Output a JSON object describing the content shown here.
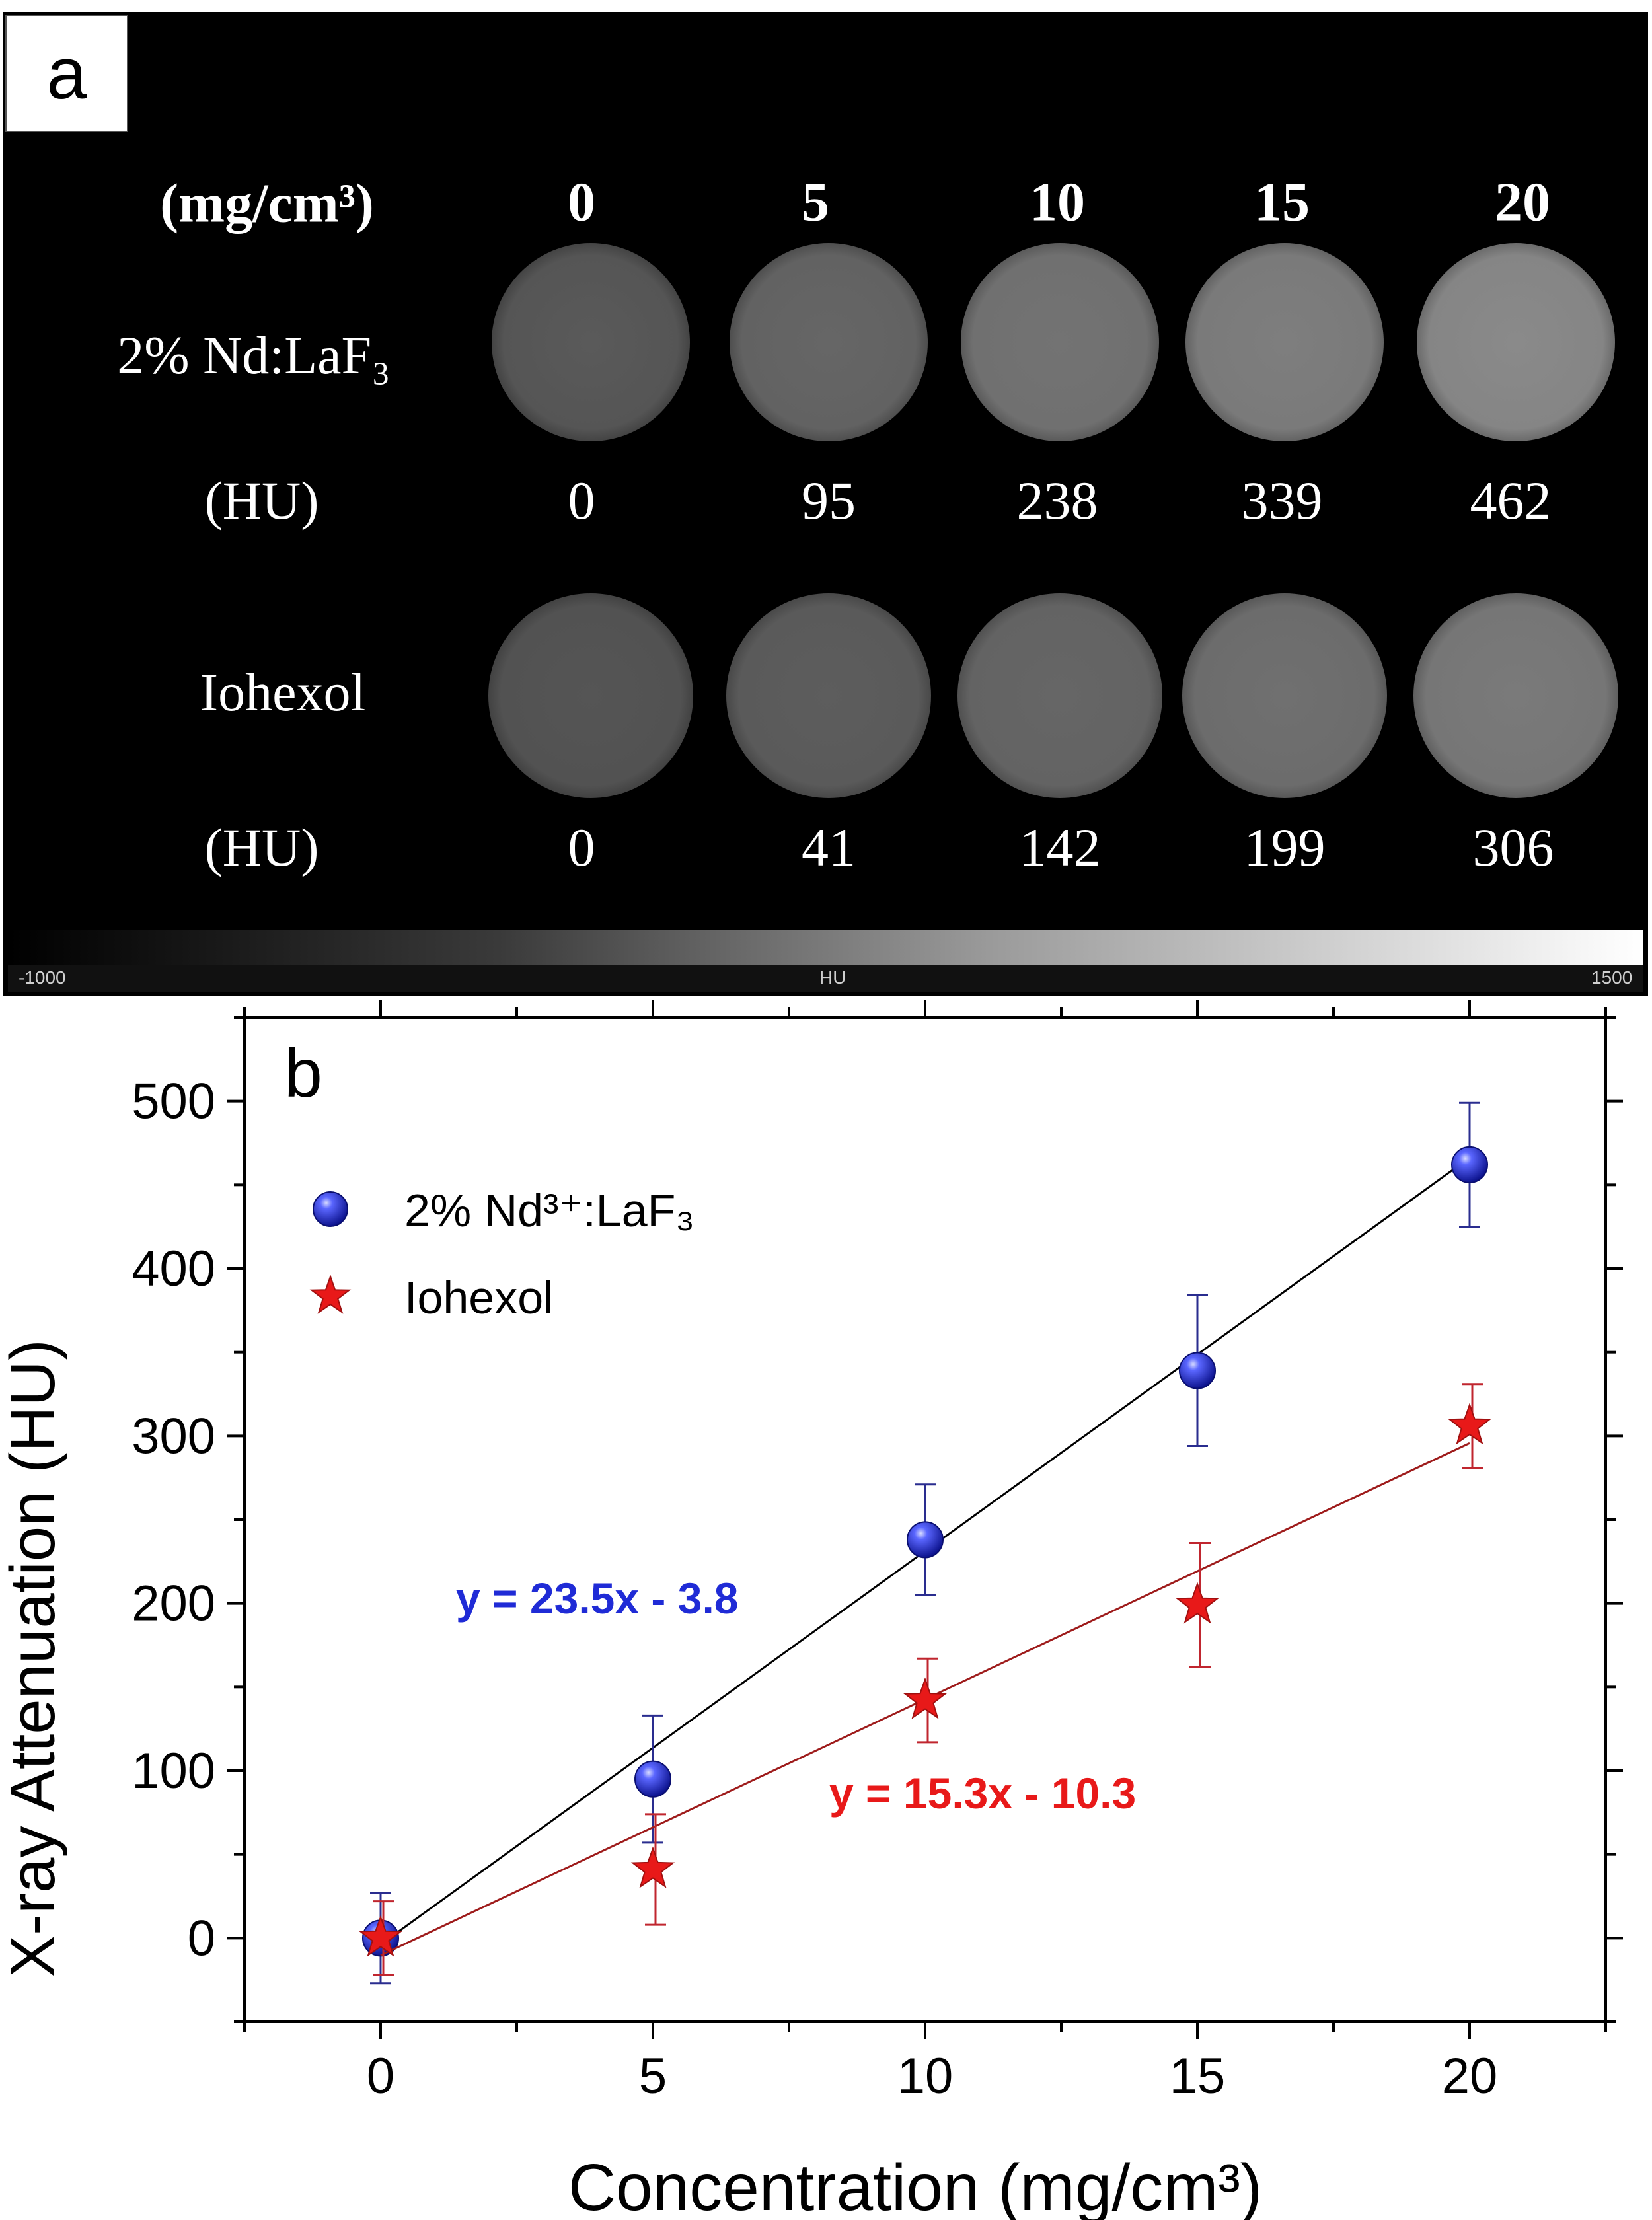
{
  "panel_a": {
    "label": "a",
    "header_unit": "(mg/cm³)",
    "concentrations": [
      "0",
      "5",
      "10",
      "15",
      "20"
    ],
    "rows": [
      {
        "name": "2% Nd:LaF₃",
        "unit": "(HU)",
        "values": [
          "0",
          "95",
          "238",
          "339",
          "462"
        ]
      },
      {
        "name": "Iohexol",
        "unit": "(HU)",
        "values": [
          "0",
          "41",
          "142",
          "199",
          "306"
        ]
      }
    ],
    "colorbar": {
      "min_label": "-1000",
      "mid_label": "HU",
      "max_label": "1500"
    }
  },
  "chart_data": {
    "type": "scatter",
    "panel_label": "b",
    "xlabel": "Concentration (mg/cm³)",
    "ylabel": "X-ray Attenuation (HU)",
    "xlim": [
      -2.5,
      22.5
    ],
    "ylim": [
      -50,
      550
    ],
    "xticks": [
      0,
      5,
      10,
      15,
      20
    ],
    "yticks": [
      0,
      100,
      200,
      300,
      400,
      500
    ],
    "legend_position": "top-left",
    "series": [
      {
        "name": "2% Nd³⁺:LaF₃",
        "marker": "sphere",
        "color": "#1f2bd6",
        "x": [
          0,
          5,
          10,
          15,
          20
        ],
        "y": [
          0,
          95,
          238,
          339,
          462
        ],
        "err": [
          27,
          38,
          33,
          45,
          37
        ],
        "fit": {
          "slope": 23.5,
          "intercept": -3.8,
          "label": "y = 23.5x - 3.8",
          "color": "#000000",
          "label_color": "#1f2bd6"
        }
      },
      {
        "name": "Iohexol",
        "marker": "star",
        "color": "#e81919",
        "x": [
          0,
          5,
          10,
          15,
          20
        ],
        "y": [
          0,
          41,
          142,
          199,
          306
        ],
        "err": [
          22,
          33,
          25,
          37,
          25
        ],
        "fit": {
          "slope": 15.3,
          "intercept": -10.3,
          "label": "y = 15.3x - 10.3",
          "color": "#9e1b1b",
          "label_color": "#e81919"
        }
      }
    ]
  }
}
